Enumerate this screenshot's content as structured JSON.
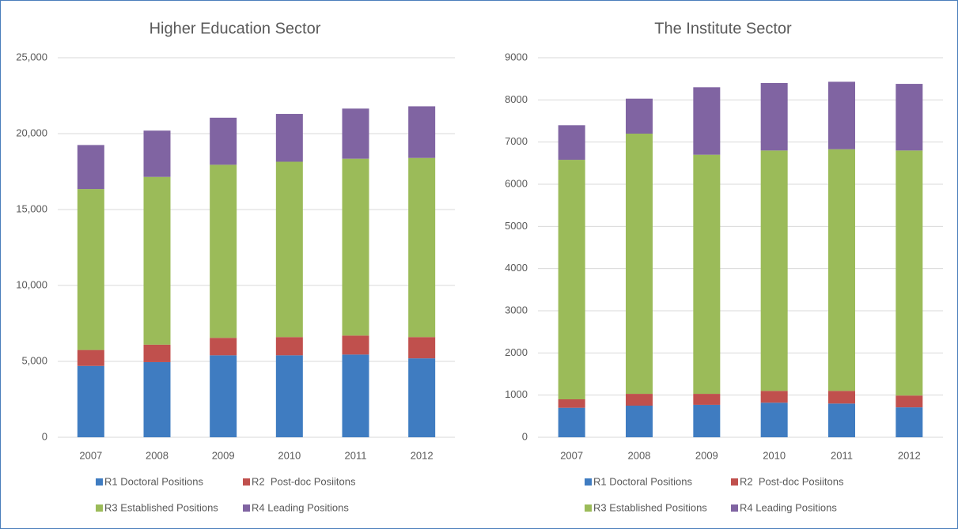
{
  "chart_data": [
    {
      "type": "bar",
      "stacked": true,
      "title": "Higher Education Sector",
      "categories": [
        "2007",
        "2008",
        "2009",
        "2010",
        "2011",
        "2012"
      ],
      "series": [
        {
          "name": "R1 Doctoral Positions",
          "color": "#3f7cc1",
          "values": [
            4700,
            4950,
            5400,
            5400,
            5450,
            5200
          ]
        },
        {
          "name": "R2  Post-doc Posiitons",
          "color": "#c0504d",
          "values": [
            1050,
            1150,
            1150,
            1200,
            1250,
            1400
          ]
        },
        {
          "name": "R3 Established Positions",
          "color": "#9bbb59",
          "values": [
            10600,
            11050,
            11400,
            11550,
            11650,
            11800
          ]
        },
        {
          "name": "R4 Leading Positions",
          "color": "#8064a2",
          "values": [
            2900,
            3050,
            3100,
            3150,
            3300,
            3400
          ]
        }
      ],
      "ylim": [
        0,
        25000
      ],
      "yticks": [
        0,
        {
          "value": 5000,
          "label": "5,000"
        },
        {
          "value": 10000,
          "label": "10,000"
        },
        {
          "value": 15000,
          "label": "15,000"
        },
        {
          "value": 20000,
          "label": "20,000"
        },
        {
          "value": 25000,
          "label": "25,000"
        }
      ],
      "grid": true,
      "legend": "bottom"
    },
    {
      "type": "bar",
      "stacked": true,
      "title": "The Institute Sector",
      "categories": [
        "2007",
        "2008",
        "2009",
        "2010",
        "2011",
        "2012"
      ],
      "series": [
        {
          "name": "R1 Doctoral Positions",
          "color": "#3f7cc1",
          "values": [
            700,
            750,
            770,
            820,
            800,
            710
          ]
        },
        {
          "name": "R2  Post-doc Posiitons",
          "color": "#c0504d",
          "values": [
            200,
            280,
            260,
            280,
            300,
            280
          ]
        },
        {
          "name": "R3 Established Positions",
          "color": "#9bbb59",
          "values": [
            5680,
            6170,
            5670,
            5700,
            5730,
            5810
          ]
        },
        {
          "name": "R4 Leading Positions",
          "color": "#8064a2",
          "values": [
            820,
            830,
            1600,
            1600,
            1600,
            1580
          ]
        }
      ],
      "ylim": [
        0,
        9000
      ],
      "yticks": [
        0,
        1000,
        2000,
        3000,
        4000,
        5000,
        6000,
        7000,
        8000,
        9000
      ],
      "grid": true,
      "legend": "bottom"
    }
  ]
}
